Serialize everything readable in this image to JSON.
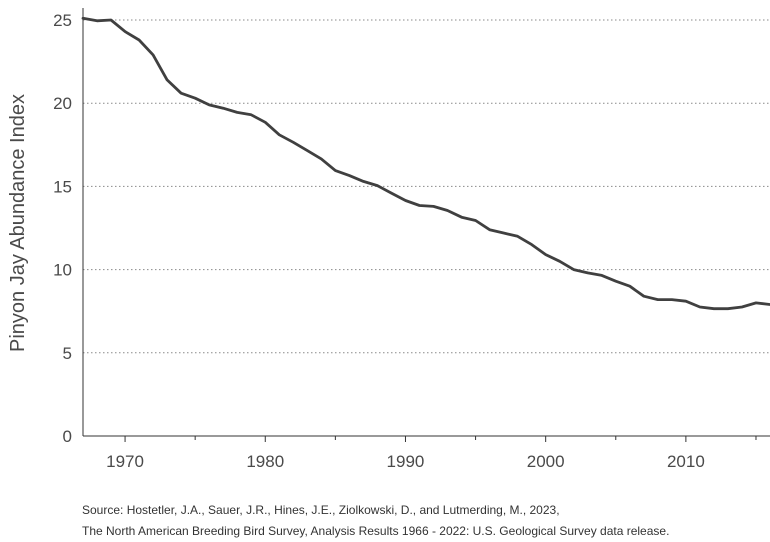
{
  "chart_data": {
    "type": "line",
    "title": "",
    "xlabel": "",
    "ylabel": "Pinyon Jay Abundance Index",
    "xlim": [
      1967,
      2016
    ],
    "ylim": [
      0,
      25
    ],
    "x_ticks": [
      1970,
      1980,
      1990,
      2000,
      2010
    ],
    "y_ticks": [
      0,
      5,
      10,
      15,
      20,
      25
    ],
    "grid": "horizontal dotted",
    "legend": "none",
    "line_color": "#404040",
    "series": [
      {
        "x": [
          1967,
          1968,
          1969,
          1970,
          1971,
          1972,
          1973,
          1974,
          1975,
          1976,
          1977,
          1978,
          1979,
          1980,
          1981,
          1982,
          1983,
          1984,
          1985,
          1986,
          1987,
          1988,
          1989,
          1990,
          1991,
          1992,
          1993,
          1994,
          1995,
          1996,
          1997,
          1998,
          1999,
          2000,
          2001,
          2002,
          2003,
          2004,
          2005,
          2006,
          2007,
          2008,
          2009,
          2010,
          2011,
          2012,
          2013,
          2014,
          2015,
          2016
        ],
        "y": [
          25.1,
          24.95,
          25.0,
          24.3,
          23.8,
          22.9,
          21.4,
          20.6,
          20.3,
          19.9,
          19.7,
          19.45,
          19.3,
          18.85,
          18.1,
          17.65,
          17.15,
          16.65,
          15.95,
          15.65,
          15.3,
          15.05,
          14.6,
          14.15,
          13.85,
          13.8,
          13.55,
          13.15,
          12.95,
          12.4,
          12.2,
          12.0,
          11.5,
          10.9,
          10.5,
          10.0,
          9.8,
          9.65,
          9.3,
          9.0,
          8.4,
          8.2,
          8.2,
          8.1,
          7.75,
          7.65,
          7.65,
          7.75,
          8.0,
          7.9
        ]
      }
    ]
  },
  "source": {
    "line1": "Source: Hostetler, J.A., Sauer, J.R., Hines, J.E., Ziolkowski, D., and Lutmerding, M., 2023,",
    "line2": "The North American Breeding Bird Survey, Analysis Results 1966 - 2022: U.S. Geological Survey data release."
  }
}
